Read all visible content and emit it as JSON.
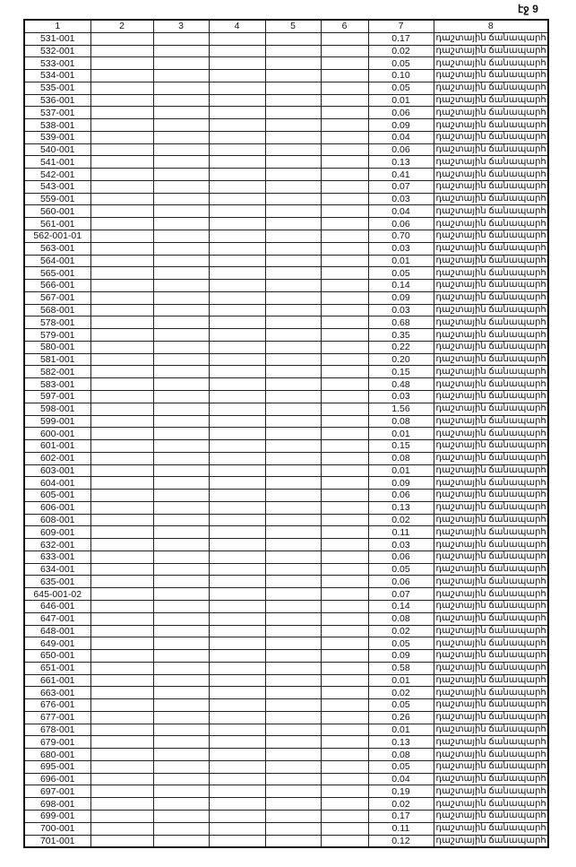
{
  "page_label": "էջ 9",
  "columns": [
    "1",
    "2",
    "3",
    "4",
    "5",
    "6",
    "7",
    "8"
  ],
  "road_label": "դաշտային ճանապարհ",
  "rows": [
    [
      "531-001",
      "0.17"
    ],
    [
      "532-001",
      "0.02"
    ],
    [
      "533-001",
      "0.05"
    ],
    [
      "534-001",
      "0.10"
    ],
    [
      "535-001",
      "0.05"
    ],
    [
      "536-001",
      "0.01"
    ],
    [
      "537-001",
      "0.06"
    ],
    [
      "538-001",
      "0.09"
    ],
    [
      "539-001",
      "0.04"
    ],
    [
      "540-001",
      "0.06"
    ],
    [
      "541-001",
      "0.13"
    ],
    [
      "542-001",
      "0.41"
    ],
    [
      "543-001",
      "0.07"
    ],
    [
      "559-001",
      "0.03"
    ],
    [
      "560-001",
      "0.04"
    ],
    [
      "561-001",
      "0.06"
    ],
    [
      "562-001-01",
      "0.70"
    ],
    [
      "563-001",
      "0.03"
    ],
    [
      "564-001",
      "0.01"
    ],
    [
      "565-001",
      "0.05"
    ],
    [
      "566-001",
      "0.14"
    ],
    [
      "567-001",
      "0.09"
    ],
    [
      "568-001",
      "0.03"
    ],
    [
      "578-001",
      "0.68"
    ],
    [
      "579-001",
      "0.35"
    ],
    [
      "580-001",
      "0.22"
    ],
    [
      "581-001",
      "0.20"
    ],
    [
      "582-001",
      "0.15"
    ],
    [
      "583-001",
      "0.48"
    ],
    [
      "597-001",
      "0.03"
    ],
    [
      "598-001",
      "1.56"
    ],
    [
      "599-001",
      "0.08"
    ],
    [
      "600-001",
      "0.01"
    ],
    [
      "601-001",
      "0.15"
    ],
    [
      "602-001",
      "0.08"
    ],
    [
      "603-001",
      "0.01"
    ],
    [
      "604-001",
      "0.09"
    ],
    [
      "605-001",
      "0.06"
    ],
    [
      "606-001",
      "0.13"
    ],
    [
      "608-001",
      "0.02"
    ],
    [
      "609-001",
      "0.11"
    ],
    [
      "632-001",
      "0.03"
    ],
    [
      "633-001",
      "0.06"
    ],
    [
      "634-001",
      "0.05"
    ],
    [
      "635-001",
      "0.06"
    ],
    [
      "645-001-02",
      "0.07"
    ],
    [
      "646-001",
      "0.14"
    ],
    [
      "647-001",
      "0.08"
    ],
    [
      "648-001",
      "0.02"
    ],
    [
      "649-001",
      "0.05"
    ],
    [
      "650-001",
      "0.09"
    ],
    [
      "651-001",
      "0.58"
    ],
    [
      "661-001",
      "0.01"
    ],
    [
      "663-001",
      "0.02"
    ],
    [
      "676-001",
      "0.05"
    ],
    [
      "677-001",
      "0.26"
    ],
    [
      "678-001",
      "0.01"
    ],
    [
      "679-001",
      "0.13"
    ],
    [
      "680-001",
      "0.08"
    ],
    [
      "695-001",
      "0.05"
    ],
    [
      "696-001",
      "0.04"
    ],
    [
      "697-001",
      "0.19"
    ],
    [
      "698-001",
      "0.02"
    ],
    [
      "699-001",
      "0.17"
    ],
    [
      "700-001",
      "0.11"
    ],
    [
      "701-001",
      "0.12"
    ]
  ]
}
